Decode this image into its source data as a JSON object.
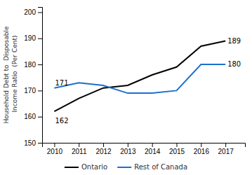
{
  "chart_data": {
    "type": "line",
    "y_label": "Household Debt to  Disposable\n Income Ratio  (Per Cent)",
    "x": [
      2010,
      2011,
      2012,
      2013,
      2014,
      2015,
      2016,
      2017
    ],
    "xlim": [
      2009.5,
      2017.8
    ],
    "xticks": [
      2010,
      2011,
      2012,
      2013,
      2014,
      2015,
      2016,
      2017
    ],
    "ylim": [
      150,
      202
    ],
    "yticks": [
      150,
      160,
      170,
      180,
      190,
      200
    ],
    "grid": false,
    "legend": "bottom",
    "series": [
      {
        "name": "Ontario",
        "color": "#000000",
        "values": [
          162,
          167,
          171,
          172,
          176,
          179,
          187,
          189
        ]
      },
      {
        "name": "Rest of Canada",
        "color": "#1c6fcd",
        "values": [
          171,
          173,
          172,
          169,
          169,
          170,
          180,
          180
        ]
      }
    ],
    "annotations": [
      {
        "text": "162",
        "x": 2010,
        "y": 162,
        "color": "#000000"
      },
      {
        "text": "171",
        "x": 2010,
        "y": 171,
        "color": "#000000"
      },
      {
        "text": "189",
        "x": 2017,
        "y": 189,
        "color": "#000000"
      },
      {
        "text": "180",
        "x": 2017,
        "y": 180,
        "color": "#000000"
      }
    ]
  }
}
